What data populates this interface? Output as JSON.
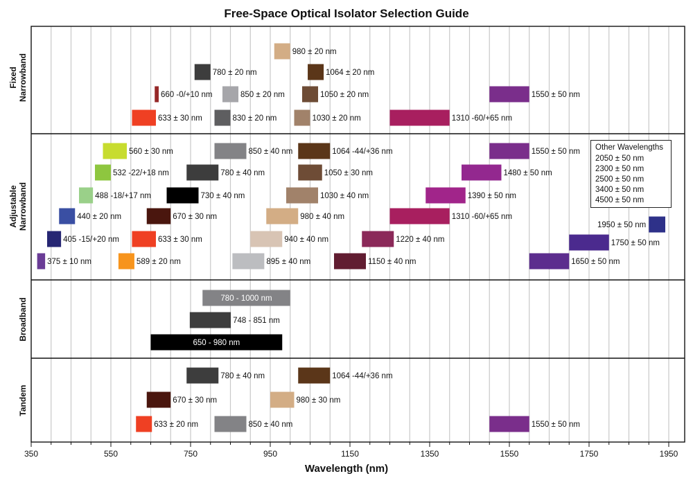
{
  "chart_data": {
    "type": "bar",
    "title": "Free-Space Optical Isolator Selection Guide",
    "xlabel": "Wavelength (nm)",
    "xlim": [
      350,
      1990
    ],
    "xticks": [
      "350",
      "550",
      "750",
      "950",
      "1150",
      "1350",
      "1550",
      "1750",
      "1950"
    ],
    "grid": true,
    "sections": [
      {
        "name": "Fixed\nNarrowband",
        "bars": [
          {
            "label": "980 ± 20 nm",
            "start": 960,
            "end": 1000,
            "color": "#d3ad85"
          },
          {
            "label": "780 ± 20 nm",
            "start": 760,
            "end": 800,
            "color": "#3d3d3d"
          },
          {
            "label": "1064 ± 20 nm",
            "start": 1044,
            "end": 1084,
            "color": "#5b3619"
          },
          {
            "label": "660 -0/+10 nm",
            "start": 660,
            "end": 670,
            "color": "#962828"
          },
          {
            "label": "850 ± 20 nm",
            "start": 830,
            "end": 870,
            "color": "#a6a6aa"
          },
          {
            "label": "1050 ± 20 nm",
            "start": 1030,
            "end": 1070,
            "color": "#6e4c36"
          },
          {
            "label": "1550 ± 50 nm",
            "start": 1500,
            "end": 1600,
            "color": "#7a2e8b"
          },
          {
            "label": "633 ± 30 nm",
            "start": 603,
            "end": 663,
            "color": "#ef4023"
          },
          {
            "label": "830 ± 20 nm",
            "start": 810,
            "end": 850,
            "color": "#5e5e60"
          },
          {
            "label": "1030 ± 20 nm",
            "start": 1010,
            "end": 1050,
            "color": "#a1826a"
          },
          {
            "label": "1310 -60/+65 nm",
            "start": 1250,
            "end": 1400,
            "color": "#a81f5f"
          }
        ]
      },
      {
        "name": "Adjustable\nNarrowband",
        "bars": [
          {
            "label": "560 ± 30 nm",
            "start": 530,
            "end": 590,
            "color": "#c7dc2f"
          },
          {
            "label": "850 ± 40 nm",
            "start": 810,
            "end": 890,
            "color": "#838386"
          },
          {
            "label": "1064 -44/+36 nm",
            "start": 1020,
            "end": 1100,
            "color": "#5b3619"
          },
          {
            "label": "1550 ± 50 nm",
            "start": 1500,
            "end": 1600,
            "color": "#7a2e8b"
          },
          {
            "label": "532 -22/+18 nm",
            "start": 510,
            "end": 550,
            "color": "#8ec63f"
          },
          {
            "label": "780 ± 40 nm",
            "start": 740,
            "end": 820,
            "color": "#3d3d3d"
          },
          {
            "label": "1050 ± 30 nm",
            "start": 1020,
            "end": 1080,
            "color": "#6e4c36"
          },
          {
            "label": "1480 ± 50 nm",
            "start": 1430,
            "end": 1530,
            "color": "#93288f"
          },
          {
            "label": "488 -18/+17 nm",
            "start": 470,
            "end": 505,
            "color": "#9ad089"
          },
          {
            "label": "730 ± 40 nm",
            "start": 690,
            "end": 770,
            "color": "#000000"
          },
          {
            "label": "1030 ± 40 nm",
            "start": 990,
            "end": 1070,
            "color": "#a1826a"
          },
          {
            "label": "1390 ± 50 nm",
            "start": 1340,
            "end": 1440,
            "color": "#a1258a"
          },
          {
            "label": "440 ± 20 nm",
            "start": 420,
            "end": 460,
            "color": "#3a4fa3"
          },
          {
            "label": "670 ± 30 nm",
            "start": 640,
            "end": 700,
            "color": "#4a160e"
          },
          {
            "label": "980 ± 40 nm",
            "start": 940,
            "end": 1020,
            "color": "#d3ad85"
          },
          {
            "label": "1310 -60/+65 nm",
            "start": 1250,
            "end": 1400,
            "color": "#a81f5f"
          },
          {
            "label": "1950 ± 50 nm",
            "start": 1900,
            "end": 2000,
            "color": "#2e3189"
          },
          {
            "label": "405 -15/+20 nm",
            "start": 390,
            "end": 425,
            "color": "#262673"
          },
          {
            "label": "633 ± 30 nm",
            "start": 603,
            "end": 663,
            "color": "#ef4023"
          },
          {
            "label": "940 ± 40 nm",
            "start": 900,
            "end": 980,
            "color": "#d8c4b4"
          },
          {
            "label": "1220 ± 40 nm",
            "start": 1180,
            "end": 1260,
            "color": "#8b2959"
          },
          {
            "label": "1750 ± 50 nm",
            "start": 1700,
            "end": 1800,
            "color": "#4b2a8e"
          },
          {
            "label": "375 ± 10 nm",
            "start": 365,
            "end": 385,
            "color": "#6a3c96"
          },
          {
            "label": "589 ± 20 nm",
            "start": 569,
            "end": 609,
            "color": "#f7941d"
          },
          {
            "label": "895 ± 40 nm",
            "start": 855,
            "end": 935,
            "color": "#bcbdc0"
          },
          {
            "label": "1150 ± 40 nm",
            "start": 1110,
            "end": 1190,
            "color": "#611d31"
          },
          {
            "label": "1650 ± 50 nm",
            "start": 1600,
            "end": 1700,
            "color": "#5c2d8e"
          }
        ]
      },
      {
        "name": "Broadband",
        "bars": [
          {
            "label": "780 - 1000 nm",
            "start": 780,
            "end": 1000,
            "color": "#838386",
            "label_inside": true
          },
          {
            "label": "748 - 851 nm",
            "start": 748,
            "end": 851,
            "color": "#3d3d3d"
          },
          {
            "label": "650 - 980 nm",
            "start": 650,
            "end": 980,
            "color": "#000000",
            "label_inside": true
          }
        ]
      },
      {
        "name": "Tandem",
        "bars": [
          {
            "label": "780 ± 40 nm",
            "start": 740,
            "end": 820,
            "color": "#3d3d3d"
          },
          {
            "label": "1064 -44/+36 nm",
            "start": 1020,
            "end": 1100,
            "color": "#5b3619"
          },
          {
            "label": "670 ± 30 nm",
            "start": 640,
            "end": 700,
            "color": "#4a160e"
          },
          {
            "label": "980 ± 30 nm",
            "start": 950,
            "end": 1010,
            "color": "#d3ad85"
          },
          {
            "label": "633 ± 20 nm",
            "start": 613,
            "end": 653,
            "color": "#ef4023"
          },
          {
            "label": "850 ± 40 nm",
            "start": 810,
            "end": 890,
            "color": "#838386"
          },
          {
            "label": "1550 ± 50 nm",
            "start": 1500,
            "end": 1600,
            "color": "#7a2e8b"
          }
        ]
      }
    ],
    "other_wavelengths": {
      "title": "Other Wavelengths",
      "items": [
        "2050 ± 50 nm",
        "2300 ± 50 nm",
        "2500 ± 50 nm",
        "3400 ± 50 nm",
        "4500 ± 50 nm"
      ]
    }
  }
}
